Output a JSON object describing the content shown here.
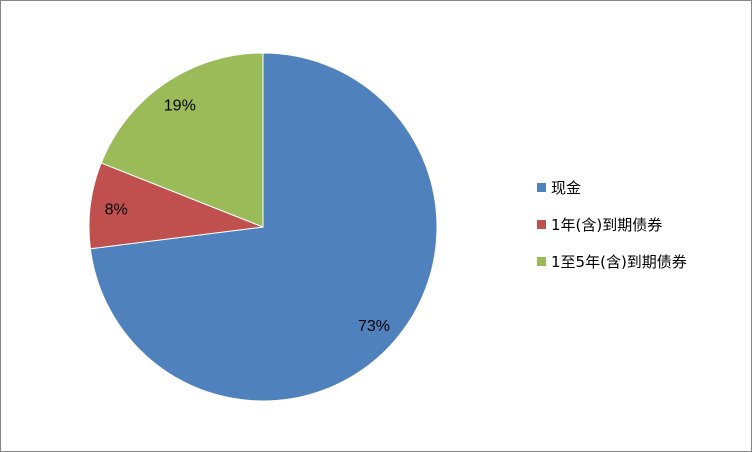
{
  "chart_data": {
    "type": "pie",
    "start_angle": "12 o'clock",
    "direction": "clockwise",
    "legend_position": "right",
    "slices": [
      {
        "name": "现金",
        "value": 73,
        "label": "73%",
        "color": "#4F81BD"
      },
      {
        "name": "1年(含)到期债券",
        "value": 8,
        "label": "8%",
        "color": "#C0504D"
      },
      {
        "name": "1至5年(含)到期债券",
        "value": 19,
        "label": "19%",
        "color": "#9BBB59"
      }
    ]
  }
}
